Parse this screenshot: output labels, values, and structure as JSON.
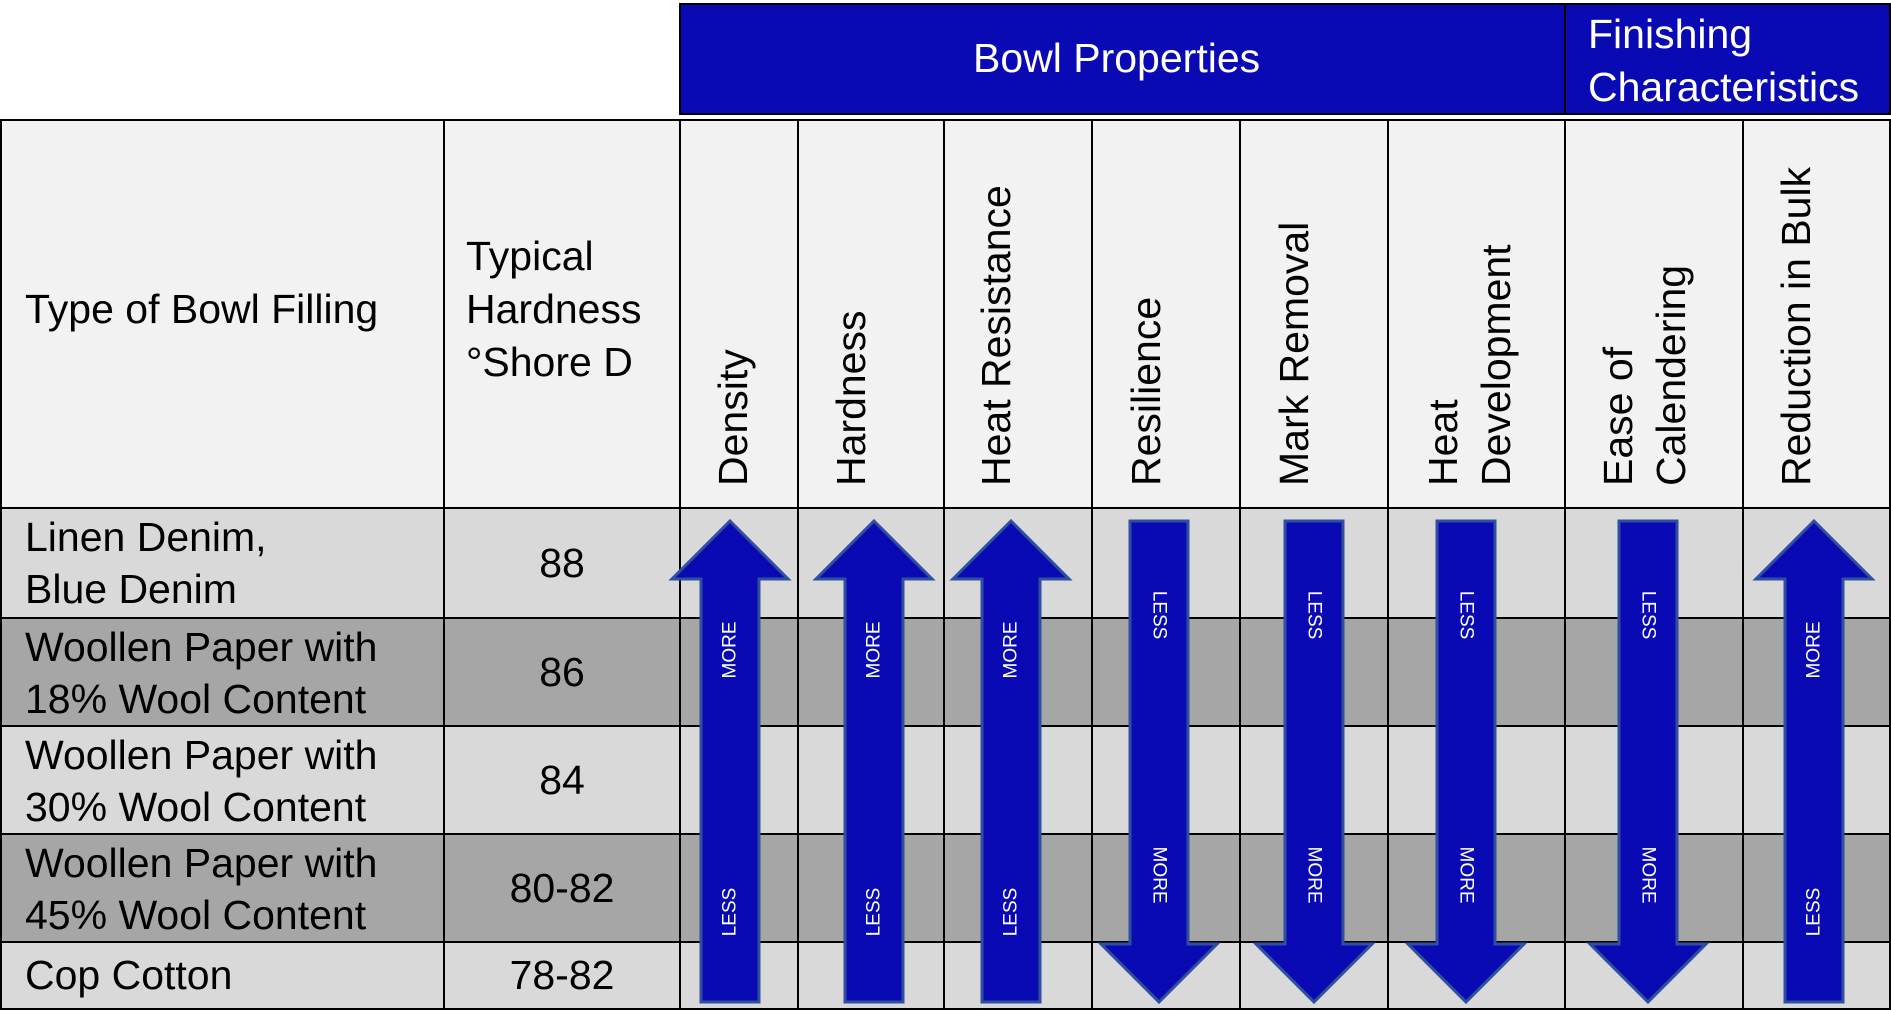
{
  "header": {
    "bowl_properties": "Bowl Properties",
    "finishing_line1": "Finishing",
    "finishing_line2": "Characteristics"
  },
  "columns": {
    "filling": "Type of Bowl Filling",
    "hardness_line1": "Typical",
    "hardness_line2": "Hardness",
    "hardness_line3": "°Shore D",
    "density": "Density",
    "hardness": "Hardness",
    "heat_resistance": "Heat Resistance",
    "resilience": "Resilience",
    "mark_removal": "Mark Removal",
    "heat_development_line1": "Heat",
    "heat_development_line2": "Development",
    "ease_line1": "Ease of",
    "ease_line2": "Calendering",
    "reduction": "Reduction in Bulk"
  },
  "rows": [
    {
      "line1": "Linen Denim,",
      "line2": "Blue Denim",
      "hardness": "88"
    },
    {
      "line1": "Woollen Paper with",
      "line2": "18% Wool Content",
      "hardness": "86"
    },
    {
      "line1": "Woollen Paper with",
      "line2": "30% Wool Content",
      "hardness": "84"
    },
    {
      "line1": "Woollen Paper with",
      "line2": "45% Wool Content",
      "hardness": "80-82"
    },
    {
      "line1": "Cop Cotton",
      "line2": "",
      "hardness": "78-82"
    }
  ],
  "arrows": {
    "up_top_label": "MORE",
    "up_bottom_label": "LESS",
    "down_top_label": "LESS",
    "down_bottom_label": "MORE",
    "fill_color": "#0a0ab4",
    "outline_color": "#2f4f9f"
  }
}
